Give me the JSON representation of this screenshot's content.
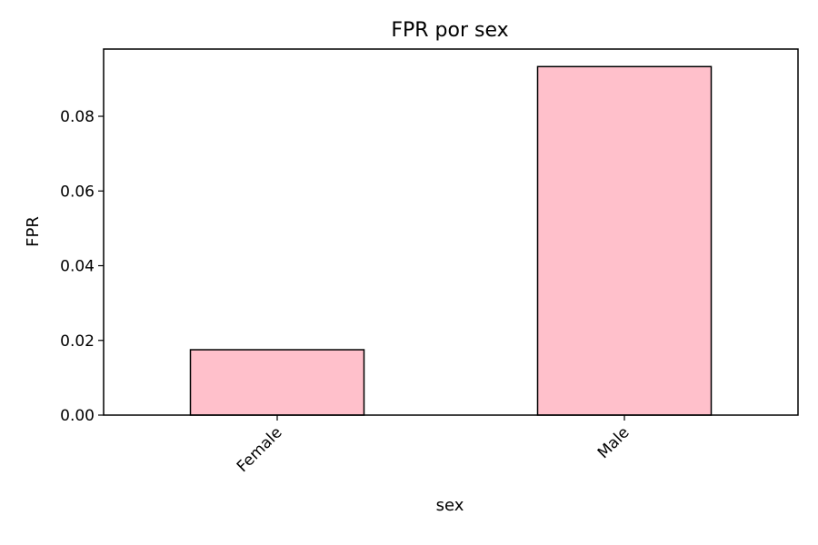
{
  "chart_data": {
    "type": "bar",
    "title": "FPR por sex",
    "xlabel": "sex",
    "ylabel": "FPR",
    "categories": [
      "Female",
      "Male"
    ],
    "values": [
      0.0175,
      0.0933
    ],
    "ylim": [
      0,
      0.098
    ],
    "yticks": [
      0.0,
      0.02,
      0.04,
      0.06,
      0.08
    ],
    "ytick_labels": [
      "0.00",
      "0.02",
      "0.04",
      "0.06",
      "0.08"
    ],
    "xtick_rotation_deg": 45,
    "grid": false,
    "legend": "none",
    "bar_color": "#FFC0CB",
    "bar_edge_color": "#000000"
  }
}
